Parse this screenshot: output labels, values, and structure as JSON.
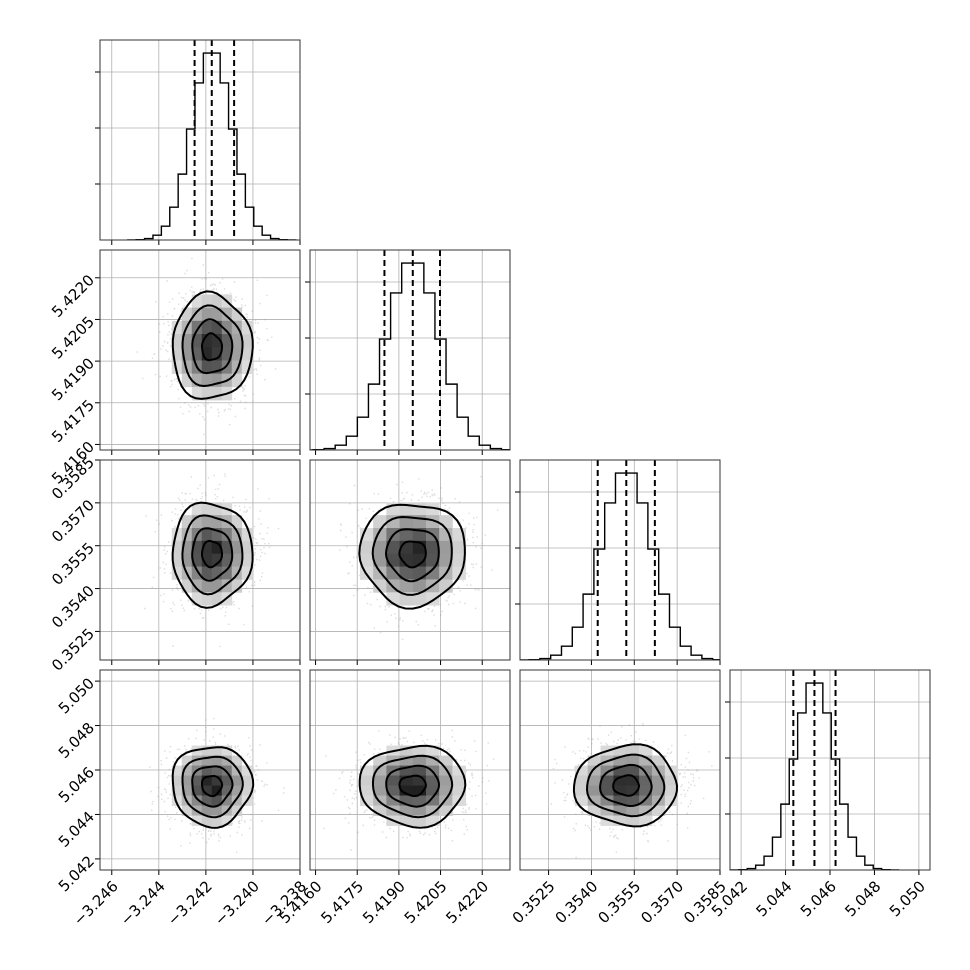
{
  "chart_data": {
    "type": "corner",
    "title": "",
    "parameters": [
      {
        "name": "",
        "range": [
          -3.2465,
          -3.238
        ],
        "ticks": [
          -3.246,
          -3.244,
          -3.242,
          -3.24,
          -3.238
        ],
        "tick_labels": [
          "−3.246",
          "−3.244",
          "−3.242",
          "−3.240",
          "−3.238"
        ],
        "mean": -3.24175,
        "sigma": 0.00085,
        "quantiles": [
          -3.24248,
          -3.24175,
          -3.2408
        ]
      },
      {
        "name": "",
        "range": [
          5.4158,
          5.423
        ],
        "ticks": [
          5.416,
          5.4175,
          5.419,
          5.4205,
          5.422
        ],
        "tick_labels": [
          "5.4160",
          "5.4175",
          "5.4190",
          "5.4205",
          "5.4220"
        ],
        "mean": 5.4195,
        "sigma": 0.00095,
        "quantiles": [
          5.41848,
          5.4195,
          5.42048
        ]
      },
      {
        "name": "",
        "range": [
          0.3515,
          0.3585
        ],
        "ticks": [
          0.3525,
          0.354,
          0.3555,
          0.357,
          0.3585
        ],
        "tick_labels": [
          "0.3525",
          "0.3540",
          "0.3555",
          "0.3570",
          "0.3585"
        ],
        "mean": 0.35522,
        "sigma": 0.0009,
        "quantiles": [
          0.35422,
          0.35522,
          0.35622
        ]
      },
      {
        "name": "",
        "range": [
          5.0415,
          5.0505
        ],
        "ticks": [
          5.042,
          5.044,
          5.046,
          5.048,
          5.05
        ],
        "tick_labels": [
          "5.042",
          "5.044",
          "5.046",
          "5.048",
          "5.050"
        ],
        "mean": 5.0453,
        "sigma": 0.0009,
        "quantiles": [
          5.04435,
          5.0453,
          5.04625
        ]
      }
    ],
    "histogram_bins": 20,
    "contour_levels_sigma": [
      0.5,
      1.0,
      1.5,
      2.0
    ],
    "grid": true,
    "legend": "none",
    "colors": {
      "hist": "#000000",
      "contour": "#000000",
      "density": "#000000",
      "points": "#9a9a9a"
    }
  }
}
